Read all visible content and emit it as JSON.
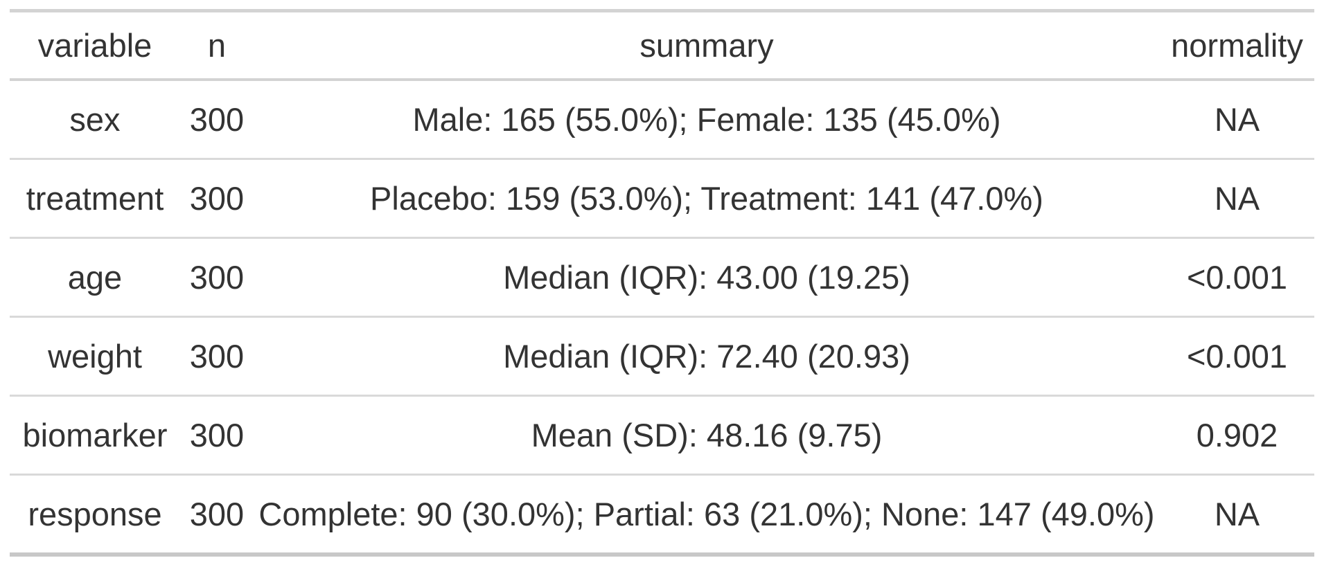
{
  "chart_data": {
    "type": "table",
    "columns": [
      "variable",
      "n",
      "summary",
      "normality"
    ],
    "rows": [
      {
        "variable": "sex",
        "n": "300",
        "summary": "Male: 165 (55.0%); Female: 135 (45.0%)",
        "normality": "NA"
      },
      {
        "variable": "treatment",
        "n": "300",
        "summary": "Placebo: 159 (53.0%); Treatment: 141 (47.0%)",
        "normality": "NA"
      },
      {
        "variable": "age",
        "n": "300",
        "summary": "Median (IQR): 43.00 (19.25)",
        "normality": "<0.001"
      },
      {
        "variable": "weight",
        "n": "300",
        "summary": "Median (IQR): 72.40 (20.93)",
        "normality": "<0.001"
      },
      {
        "variable": "biomarker",
        "n": "300",
        "summary": "Mean (SD): 48.16 (9.75)",
        "normality": "0.902"
      },
      {
        "variable": "response",
        "n": "300",
        "summary": "Complete: 90 (30.0%); Partial: 63 (21.0%); None: 147 (49.0%)",
        "normality": "NA"
      }
    ],
    "layout": {
      "grid": "horizontal-rules-only",
      "alignment": "center"
    }
  },
  "colors": {
    "text": "#333333",
    "rule": "#d3d3d3",
    "row_rule": "#d9d9d9",
    "bottom_rule": "#c8c8c8",
    "background": "#ffffff"
  }
}
